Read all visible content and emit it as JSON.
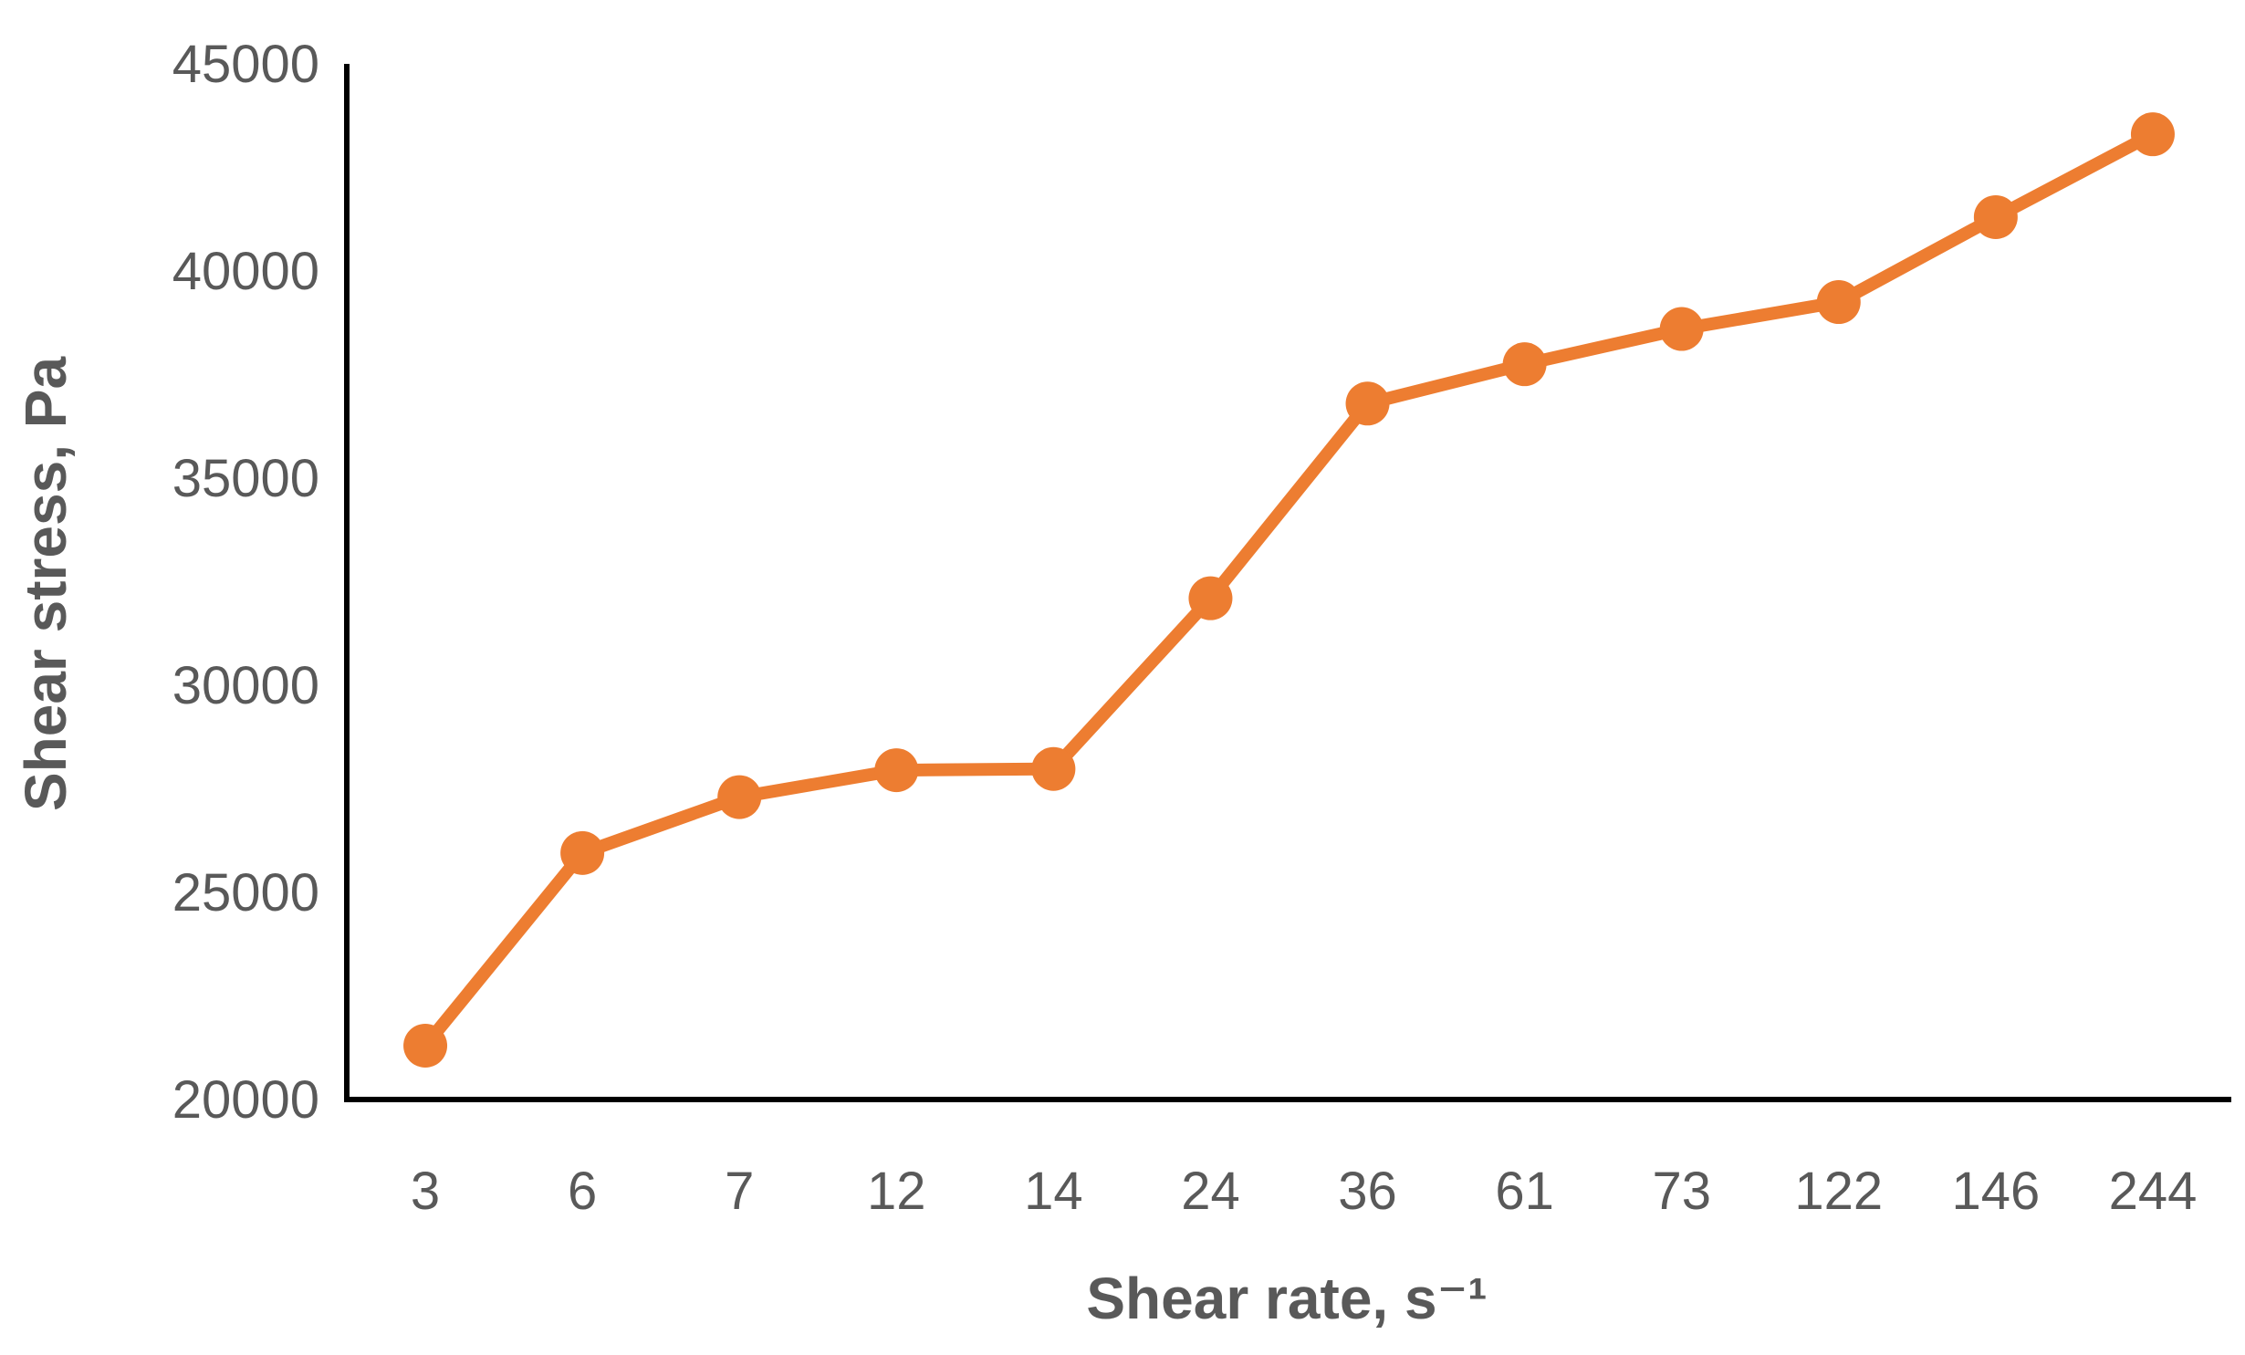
{
  "chart_data": {
    "type": "line",
    "title": "",
    "xlabel": "Shear rate, s⁻¹",
    "ylabel": "Shear stress, Pa",
    "categories": [
      "3",
      "6",
      "7",
      "12",
      "14",
      "24",
      "36",
      "61",
      "73",
      "122",
      "146",
      "244"
    ],
    "series": [
      {
        "values": [
          21300,
          25950,
          27300,
          27950,
          27980,
          32100,
          36800,
          37750,
          38600,
          39250,
          41300,
          43300
        ],
        "color": "#ED7D31",
        "marker": "circle"
      }
    ],
    "ylim": [
      20000,
      45000
    ],
    "yticks": [
      "20000",
      "25000",
      "30000",
      "35000",
      "40000",
      "45000"
    ],
    "grid": false,
    "legend": "none",
    "axis_color": "#000000",
    "text_color": "#595959"
  }
}
